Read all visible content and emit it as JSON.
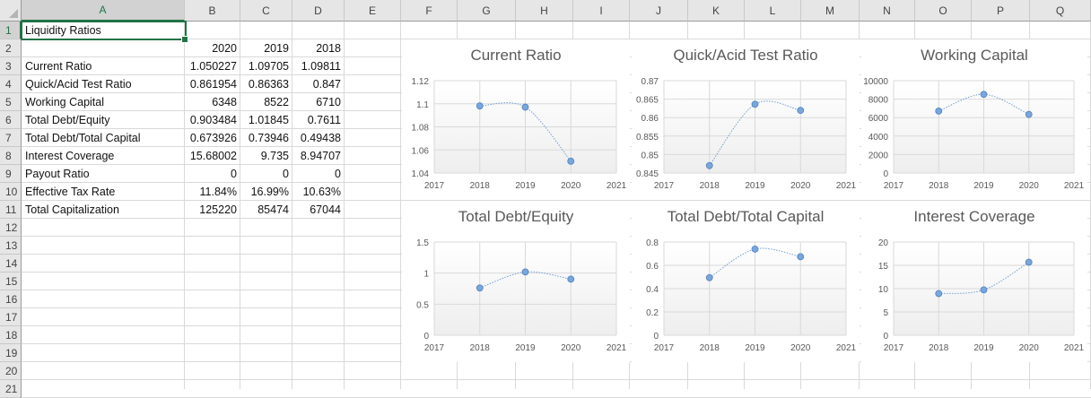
{
  "columns": [
    "A",
    "B",
    "C",
    "D",
    "E",
    "F",
    "G",
    "H",
    "I",
    "J",
    "K",
    "L",
    "M",
    "N",
    "O",
    "P",
    "Q"
  ],
  "rows": [
    "1",
    "2",
    "3",
    "4",
    "5",
    "6",
    "7",
    "8",
    "9",
    "10",
    "11",
    "12",
    "13",
    "14",
    "15",
    "16",
    "17",
    "18",
    "19",
    "20",
    "21"
  ],
  "selected_cell": "A1",
  "sheet": {
    "title": "Liquidity Ratios",
    "years": [
      "2020",
      "2019",
      "2018"
    ],
    "rows": [
      {
        "label": "Current Ratio",
        "values": [
          "1.050227",
          "1.09705",
          "1.09811"
        ]
      },
      {
        "label": "Quick/Acid Test Ratio",
        "values": [
          "0.861954",
          "0.86363",
          "0.847"
        ]
      },
      {
        "label": "Working Capital",
        "values": [
          "6348",
          "8522",
          "6710"
        ]
      },
      {
        "label": "Total Debt/Equity",
        "values": [
          "0.903484",
          "1.01845",
          "0.7611"
        ]
      },
      {
        "label": "Total Debt/Total Capital",
        "values": [
          "0.673926",
          "0.73946",
          "0.49438"
        ]
      },
      {
        "label": "Interest Coverage",
        "values": [
          "15.68002",
          "9.735",
          "8.94707"
        ]
      },
      {
        "label": "Payout Ratio",
        "values": [
          "0",
          "0",
          "0"
        ]
      },
      {
        "label": "Effective Tax Rate",
        "values": [
          "11.84%",
          "16.99%",
          "10.63%"
        ]
      },
      {
        "label": "Total Capitalization",
        "values": [
          "125220",
          "85474",
          "67044"
        ]
      }
    ]
  },
  "colors": {
    "accent": "#217346",
    "marker": "#7aa6d9",
    "series_line": "#6f9fd8"
  },
  "chart_data": [
    {
      "type": "scatter",
      "title": "Current Ratio",
      "x": [
        2018,
        2019,
        2020
      ],
      "values": [
        1.09811,
        1.09705,
        1.050227
      ],
      "xlim": [
        2017,
        2021
      ],
      "ylim": [
        1.04,
        1.12
      ],
      "xticks": [
        "2017",
        "2018",
        "2019",
        "2020",
        "2021"
      ],
      "yticks": [
        "1.04",
        "1.06",
        "1.08",
        "1.1",
        "1.12"
      ],
      "grid": true
    },
    {
      "type": "scatter",
      "title": "Quick/Acid Test Ratio",
      "x": [
        2018,
        2019,
        2020
      ],
      "values": [
        0.847,
        0.86363,
        0.861954
      ],
      "xlim": [
        2017,
        2021
      ],
      "ylim": [
        0.845,
        0.87
      ],
      "xticks": [
        "2017",
        "2018",
        "2019",
        "2020",
        "2021"
      ],
      "yticks": [
        "0.845",
        "0.85",
        "0.855",
        "0.86",
        "0.865",
        "0.87"
      ],
      "grid": true
    },
    {
      "type": "scatter",
      "title": "Working Capital",
      "x": [
        2018,
        2019,
        2020
      ],
      "values": [
        6710,
        8522,
        6348
      ],
      "xlim": [
        2017,
        2021
      ],
      "ylim": [
        0,
        10000
      ],
      "xticks": [
        "2017",
        "2018",
        "2019",
        "2020",
        "2021"
      ],
      "yticks": [
        "0",
        "2000",
        "4000",
        "6000",
        "8000",
        "10000"
      ],
      "grid": true
    },
    {
      "type": "scatter",
      "title": "Total Debt/Equity",
      "x": [
        2018,
        2019,
        2020
      ],
      "values": [
        0.7611,
        1.01845,
        0.903484
      ],
      "xlim": [
        2017,
        2021
      ],
      "ylim": [
        0,
        1.5
      ],
      "xticks": [
        "2017",
        "2018",
        "2019",
        "2020",
        "2021"
      ],
      "yticks": [
        "0",
        "0.5",
        "1",
        "1.5"
      ],
      "grid": true
    },
    {
      "type": "scatter",
      "title": "Total Debt/Total Capital",
      "x": [
        2018,
        2019,
        2020
      ],
      "values": [
        0.49438,
        0.73946,
        0.673926
      ],
      "xlim": [
        2017,
        2021
      ],
      "ylim": [
        0,
        0.8
      ],
      "xticks": [
        "2017",
        "2018",
        "2019",
        "2020",
        "2021"
      ],
      "yticks": [
        "0",
        "0.2",
        "0.4",
        "0.6",
        "0.8"
      ],
      "grid": true
    },
    {
      "type": "scatter",
      "title": "Interest Coverage",
      "x": [
        2018,
        2019,
        2020
      ],
      "values": [
        8.94707,
        9.735,
        15.68002
      ],
      "xlim": [
        2017,
        2021
      ],
      "ylim": [
        0,
        20
      ],
      "xticks": [
        "2017",
        "2018",
        "2019",
        "2020",
        "2021"
      ],
      "yticks": [
        "0",
        "5",
        "10",
        "15",
        "20"
      ],
      "grid": true
    }
  ]
}
